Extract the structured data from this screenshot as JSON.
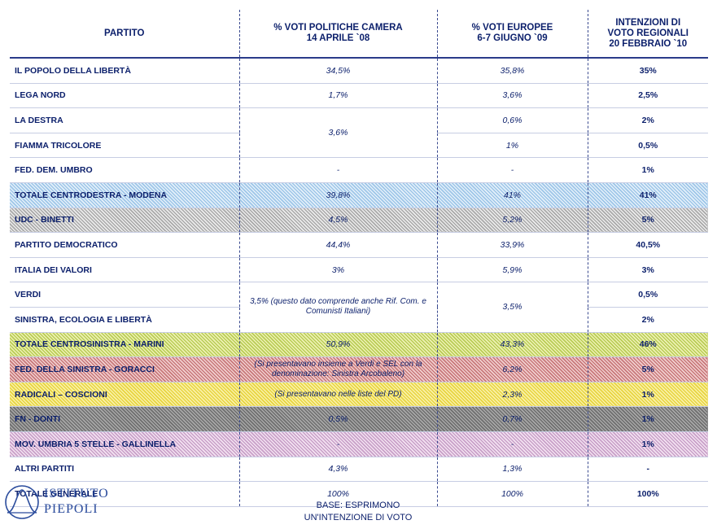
{
  "headers": {
    "party": "PARTITO",
    "politiche_l1": "% VOTI POLITICHE  CAMERA",
    "politiche_l2": "14 APRILE `08",
    "europee_l1": "% VOTI EUROPEE",
    "europee_l2": "6-7 GIUGNO `09",
    "regionali_l1": "INTENZIONI DI",
    "regionali_l2": "VOTO REGIONALI",
    "regionali_l3": "20 FEBBRAIO `10"
  },
  "rows": [
    {
      "party": "IL POPOLO DELLA LIBERTÀ",
      "politiche": "34,5%",
      "europee": "35,8%",
      "regionali": "35%"
    },
    {
      "party": "LEGA NORD",
      "politiche": "1,7%",
      "europee": "3,6%",
      "regionali": "2,5%"
    },
    {
      "party": "LA DESTRA",
      "politiche": "3,6%",
      "europee": "0,6%",
      "regionali": "2%"
    },
    {
      "party": "FIAMMA TRICOLORE",
      "politiche": "",
      "europee": "1%",
      "regionali": "0,5%"
    },
    {
      "party": "FED. DEM. UMBRO",
      "politiche": "-",
      "europee": "-",
      "regionali": "1%"
    },
    {
      "party": "TOTALE CENTRODESTRA - MODENA",
      "politiche": "39,8%",
      "europee": "41%",
      "regionali": "41%"
    },
    {
      "party": "UDC - BINETTI",
      "politiche": "4,5%",
      "europee": "5,2%",
      "regionali": "5%"
    },
    {
      "party": "PARTITO DEMOCRATICO",
      "politiche": "44,4%",
      "europee": "33,9%",
      "regionali": "40,5%"
    },
    {
      "party": "ITALIA DEI VALORI",
      "politiche": "3%",
      "europee": "5,9%",
      "regionali": "3%"
    },
    {
      "party": "VERDI",
      "politiche": "3,5% (questo dato comprende anche Rif. Com. e Comunisti Italiani)",
      "europee": "3,5%",
      "regionali": "0,5%"
    },
    {
      "party": "SINISTRA, ECOLOGIA E LIBERTÀ",
      "politiche": "",
      "europee": "",
      "regionali": "2%"
    },
    {
      "party": "TOTALE CENTROSINISTRA - MARINI",
      "politiche": "50,9%",
      "europee": "43,3%",
      "regionali": "46%"
    },
    {
      "party": "FED. DELLA SINISTRA - GORACCI",
      "politiche": "(Si presentavano insieme a Verdi e SEL con la denominazione: Sinistra Arcobaleno)",
      "europee": "6,2%",
      "regionali": "5%"
    },
    {
      "party": "RADICALI – COSCIONI",
      "politiche": "(Si presentavano nelle liste del PD)",
      "europee": "2,3%",
      "regionali": "1%"
    },
    {
      "party": "FN - DONTI",
      "politiche": "0,5%",
      "europee": "0,7%",
      "regionali": "1%"
    },
    {
      "party": "MOV. UMBRIA 5 STELLE - GALLINELLA",
      "politiche": "-",
      "europee": "-",
      "regionali": "1%"
    },
    {
      "party": "ALTRI PARTITI",
      "politiche": "4,3%",
      "europee": "1,3%",
      "regionali": "-"
    },
    {
      "party": "TOTALE GENERALE",
      "politiche": "100%",
      "europee": "100%",
      "regionali": "100%"
    }
  ],
  "row_colors": {
    "centrodestra": "#9ec6e8",
    "udc": "#a9a9a9",
    "centrosinistra": "#b9cc55",
    "sinistra": "#c8787a",
    "radicali": "#e7d440",
    "fn": "#6e6e6e",
    "m5s": "#c8a0c8"
  },
  "logo": {
    "line1": "ISTITUTO",
    "line2": "PIEPOLI"
  },
  "footer": {
    "line1": "BASE:  ESPRIMONO",
    "line2": "UN'INTENZIONE  DI  VOTO"
  }
}
